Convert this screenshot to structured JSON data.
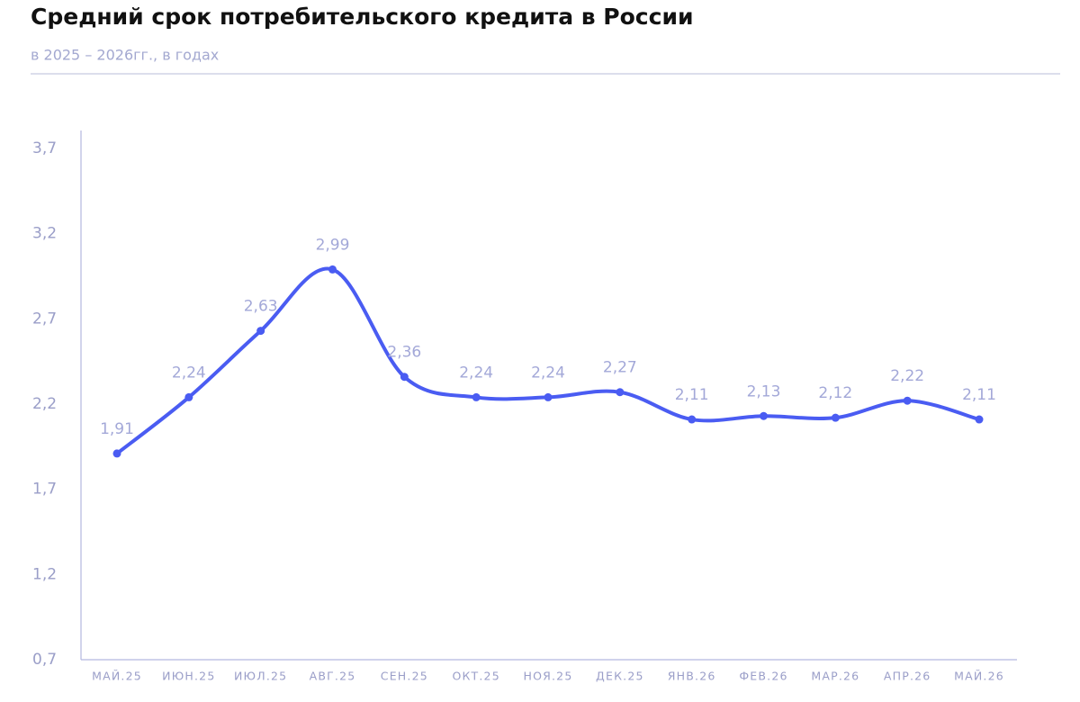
{
  "chart_data": {
    "type": "line",
    "title": "Средний срок потребительского кредита в России",
    "subtitle": "в 2025 – 2026гг., в годах",
    "categories": [
      "МАЙ.25",
      "ИЮН.25",
      "ИЮЛ.25",
      "АВГ.25",
      "СЕН.25",
      "ОКТ.25",
      "НОЯ.25",
      "ДЕК.25",
      "ЯНВ.26",
      "ФЕВ.26",
      "МАР.26",
      "АПР.26",
      "МАЙ.26"
    ],
    "values": [
      1.91,
      2.24,
      2.63,
      2.99,
      2.36,
      2.24,
      2.24,
      2.27,
      2.11,
      2.13,
      2.12,
      2.22,
      2.11
    ],
    "value_labels": [
      "1,91",
      "2,24",
      "2,63",
      "2,99",
      "2,36",
      "2,24",
      "2,24",
      "2,27",
      "2,11",
      "2,13",
      "2,12",
      "2,22",
      "2,11"
    ],
    "color": "#4a5cf2",
    "ylim": [
      0.7,
      3.7
    ],
    "yticks": [
      {
        "value": 0.7,
        "label": "0,7"
      },
      {
        "value": 1.2,
        "label": "1,2"
      },
      {
        "value": 1.7,
        "label": "1,7"
      },
      {
        "value": 2.2,
        "label": "2,2"
      },
      {
        "value": 2.7,
        "label": "2,7"
      },
      {
        "value": 3.2,
        "label": "3,2"
      },
      {
        "value": 3.7,
        "label": "3,7"
      }
    ],
    "grid": false
  }
}
